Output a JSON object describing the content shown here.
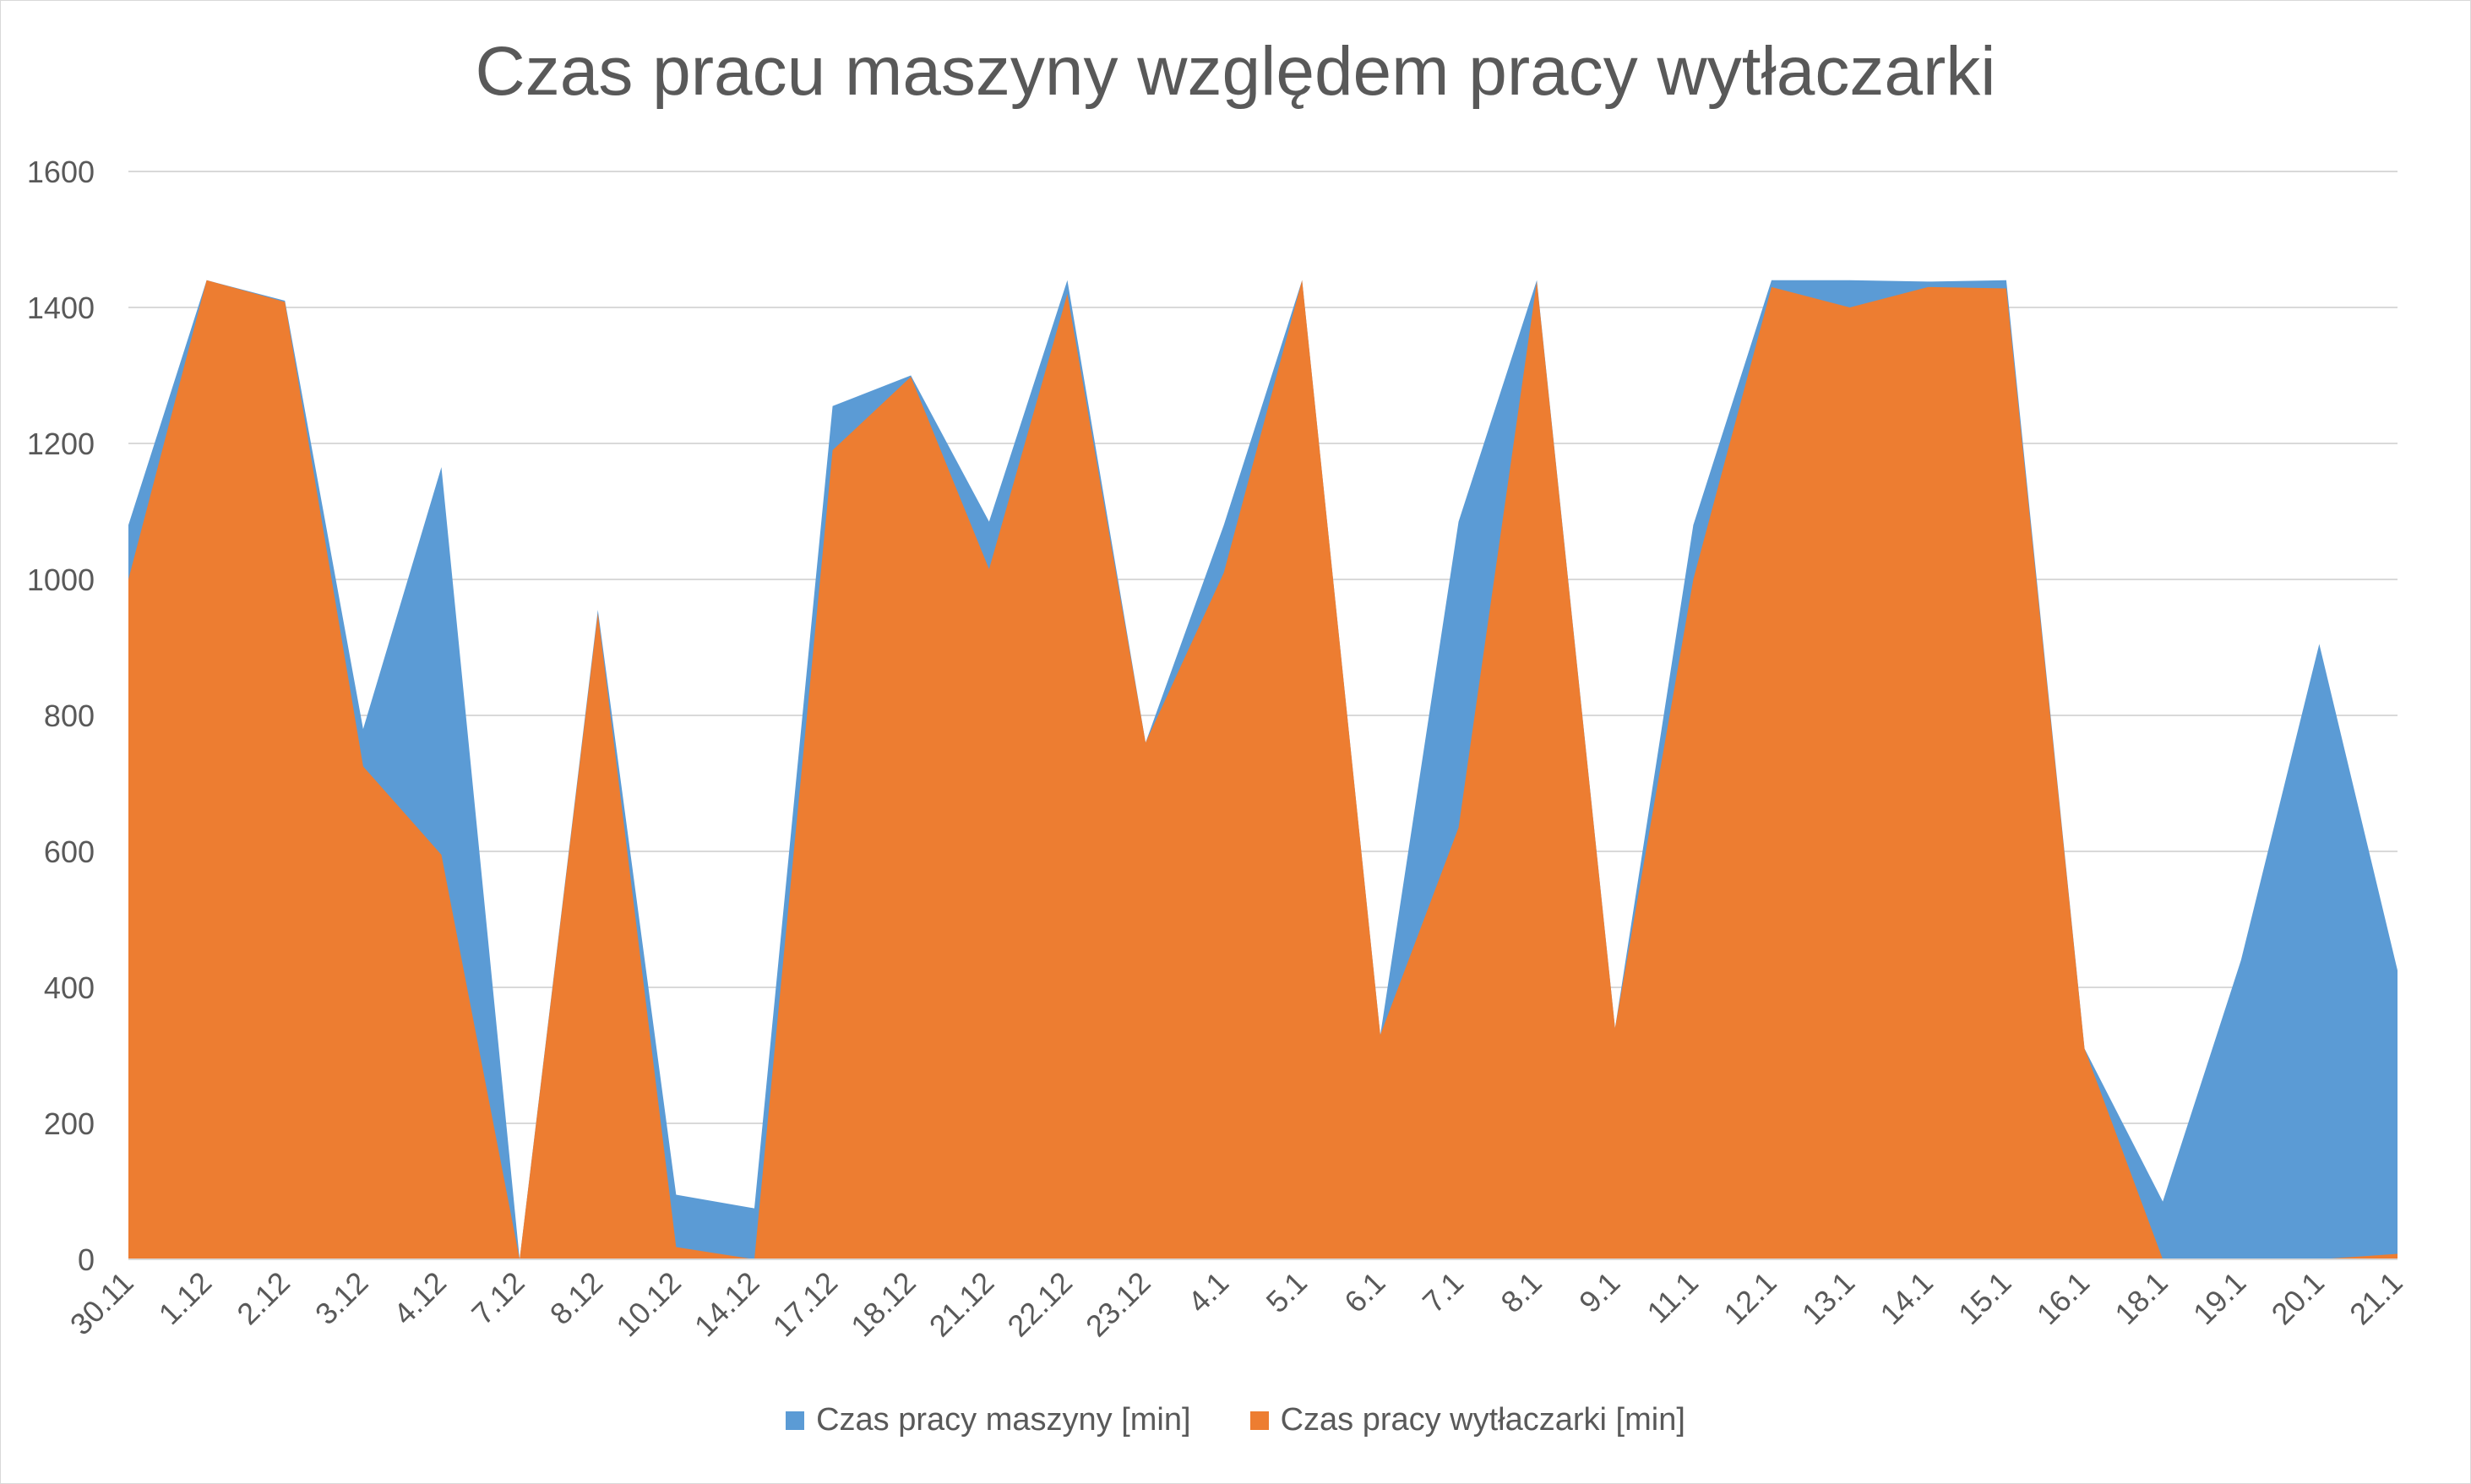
{
  "chart_data": {
    "type": "area",
    "title": "Czas pracu maszyny względem pracy wytłaczarki",
    "xlabel": "",
    "ylabel": "",
    "ylim": [
      0,
      1600
    ],
    "yticks": [
      "0",
      "200",
      "400",
      "600",
      "800",
      "1000",
      "1200",
      "1400",
      "1600"
    ],
    "grid": true,
    "legend_position": "bottom",
    "categories": [
      "30.11",
      "1.12",
      "2.12",
      "3.12",
      "4.12",
      "7.12",
      "8.12",
      "10.12",
      "14.12",
      "17.12",
      "18.12",
      "21.12",
      "22.12",
      "23.12",
      "4.1",
      "5.1",
      "6.1",
      "7.1",
      "8.1",
      "9.1",
      "11.1",
      "12.1",
      "13.1",
      "14.1",
      "15.1",
      "16.1",
      "18.1",
      "19.1",
      "20.1",
      "21.1"
    ],
    "series": [
      {
        "name": "Czas pracy maszyny [min]",
        "color": "#5b9bd5",
        "values": [
          1080,
          1440,
          1410,
          780,
          1165,
          0,
          955,
          95,
          75,
          1255,
          1300,
          1085,
          1440,
          760,
          1080,
          1440,
          330,
          1085,
          1440,
          340,
          1080,
          1440,
          1440,
          1438,
          1440,
          310,
          85,
          440,
          905,
          425
        ]
      },
      {
        "name": "Czas pracy wytłaczarki [min]",
        "color": "#ed7d31",
        "values": [
          1000,
          1440,
          1408,
          725,
          595,
          0,
          950,
          18,
          0,
          1190,
          1298,
          1015,
          1420,
          760,
          1010,
          1440,
          330,
          635,
          1438,
          340,
          1000,
          1430,
          1400,
          1430,
          1428,
          310,
          0,
          0,
          0,
          8
        ]
      }
    ]
  }
}
